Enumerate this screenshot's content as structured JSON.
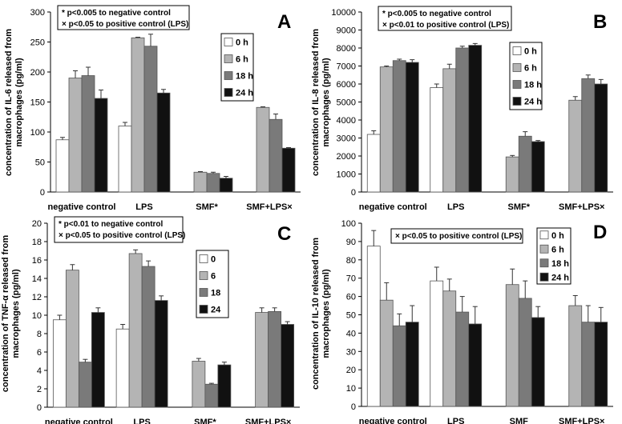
{
  "chart_data": [
    {
      "type": "bar",
      "panel_letter": "A",
      "ylabel": [
        "concentration of IL-6 released from",
        "macrophages (pg/ml)"
      ],
      "ylim": [
        0,
        300
      ],
      "yticks": [
        0,
        50,
        100,
        150,
        200,
        250,
        300
      ],
      "categories": [
        "negative control",
        "LPS",
        "SMF*",
        "SMF+LPS×"
      ],
      "annotation": [
        "* p<0.005 to negative control",
        "× p<0.05  to positive control (LPS)"
      ],
      "legend_position": "right",
      "series": [
        {
          "name": "0 h",
          "color": "#ffffff",
          "values": [
            87,
            110,
            null,
            null
          ],
          "errors": [
            4,
            6,
            null,
            null
          ]
        },
        {
          "name": "6 h",
          "color": "#b4b4b4",
          "values": [
            190,
            257,
            33,
            141
          ],
          "errors": [
            12,
            1,
            1,
            1
          ]
        },
        {
          "name": "18 h",
          "color": "#7a7a7a",
          "values": [
            194,
            243,
            31,
            121
          ],
          "errors": [
            14,
            20,
            2,
            9
          ]
        },
        {
          "name": "24 h",
          "color": "#111111",
          "values": [
            156,
            165,
            23,
            73
          ],
          "errors": [
            14,
            6,
            3,
            1
          ]
        }
      ]
    },
    {
      "type": "bar",
      "panel_letter": "B",
      "ylabel": [
        "concentration of IL-8 released from",
        "macrophages (pg/ml)"
      ],
      "ylim": [
        0,
        10000
      ],
      "yticks": [
        0,
        1000,
        2000,
        3000,
        4000,
        5000,
        6000,
        7000,
        8000,
        9000,
        10000
      ],
      "categories": [
        "negative control",
        "LPS",
        "SMF*",
        "SMF+LPS×"
      ],
      "annotation": [
        "* p<0.005 to negative control",
        "× p<0.01  to positive control (LPS)"
      ],
      "legend_position": "right",
      "series": [
        {
          "name": "0 h",
          "color": "#ffffff",
          "values": [
            3200,
            5800,
            null,
            null
          ],
          "errors": [
            200,
            200,
            null,
            null
          ]
        },
        {
          "name": "6 h",
          "color": "#b4b4b4",
          "values": [
            6950,
            6850,
            1950,
            5100
          ],
          "errors": [
            50,
            250,
            80,
            200
          ]
        },
        {
          "name": "18 h",
          "color": "#7a7a7a",
          "values": [
            7300,
            8000,
            3100,
            6300
          ],
          "errors": [
            80,
            100,
            250,
            200
          ]
        },
        {
          "name": "24 h",
          "color": "#111111",
          "values": [
            7200,
            8150,
            2800,
            6000
          ],
          "errors": [
            150,
            100,
            60,
            250
          ]
        }
      ]
    },
    {
      "type": "bar",
      "panel_letter": "C",
      "ylabel": [
        "concentration of TNF-α released from",
        "macrophages (pg/ml)"
      ],
      "ylim": [
        0,
        20
      ],
      "yticks": [
        0,
        2,
        4,
        6,
        8,
        10,
        12,
        14,
        16,
        18,
        20
      ],
      "categories": [
        "negative control",
        "LPS",
        "SMF*",
        "SMF+LPS×"
      ],
      "annotation": [
        "* p<0.01 to negative control",
        "× p<0.05 to positive control (LPS)"
      ],
      "legend_position": "right",
      "series": [
        {
          "name": "0",
          "color": "#ffffff",
          "values": [
            9.5,
            8.5,
            null,
            null
          ],
          "errors": [
            0.5,
            0.5,
            null,
            null
          ]
        },
        {
          "name": "6",
          "color": "#b4b4b4",
          "values": [
            14.9,
            16.7,
            5.0,
            10.3
          ],
          "errors": [
            0.6,
            0.4,
            0.3,
            0.5
          ]
        },
        {
          "name": "18",
          "color": "#7a7a7a",
          "values": [
            4.9,
            15.3,
            2.5,
            10.4
          ],
          "errors": [
            0.3,
            0.6,
            0.1,
            0.4
          ]
        },
        {
          "name": "24",
          "color": "#111111",
          "values": [
            10.3,
            11.6,
            4.6,
            9.0
          ],
          "errors": [
            0.5,
            0.5,
            0.3,
            0.3
          ]
        }
      ]
    },
    {
      "type": "bar",
      "panel_letter": "D",
      "ylabel": [
        "concentration of IL-10 released from",
        "macrophages (pg/ml)"
      ],
      "ylim": [
        0,
        100
      ],
      "yticks": [
        0,
        10,
        20,
        30,
        40,
        50,
        60,
        70,
        80,
        90,
        100
      ],
      "categories": [
        "negative control",
        "LPS",
        "SMF",
        "SMF+LPS×"
      ],
      "annotation": [
        "× p<0.05 to positive control (LPS)"
      ],
      "legend_position": "top-right",
      "series": [
        {
          "name": "0 h",
          "color": "#ffffff",
          "values": [
            87.5,
            68.5,
            null,
            null
          ],
          "errors": [
            8.5,
            7.5,
            null,
            null
          ]
        },
        {
          "name": "6 h",
          "color": "#b4b4b4",
          "values": [
            58,
            63,
            66.5,
            55
          ],
          "errors": [
            9.5,
            6.5,
            8.5,
            5.5
          ]
        },
        {
          "name": "18 h",
          "color": "#7a7a7a",
          "values": [
            44,
            51.5,
            59,
            46
          ],
          "errors": [
            6.5,
            8.5,
            9.5,
            9
          ]
        },
        {
          "name": "24 h",
          "color": "#111111",
          "values": [
            46,
            45,
            48.5,
            46
          ],
          "errors": [
            9,
            9.5,
            6,
            8
          ]
        }
      ]
    }
  ]
}
